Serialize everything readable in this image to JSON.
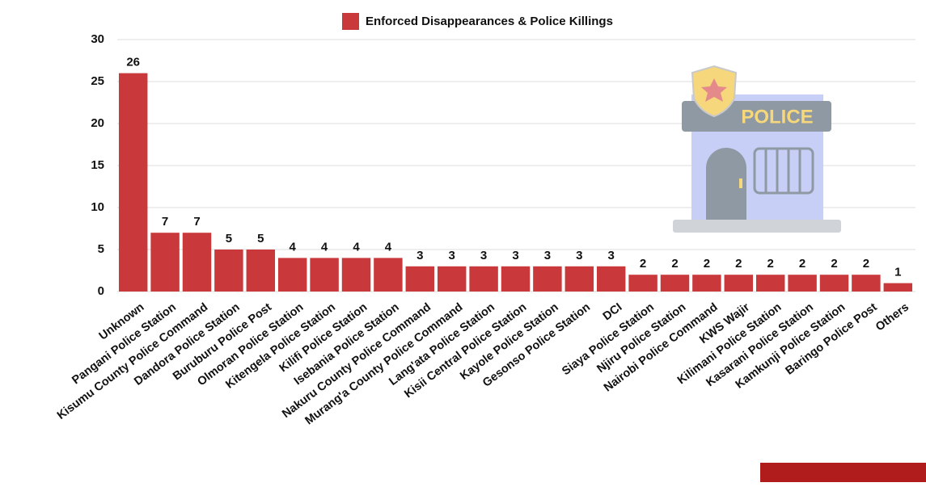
{
  "chart_data": {
    "type": "bar",
    "legend": "Enforced Disappearances & Police Killings",
    "color": "#c9393c",
    "categories": [
      "Unknown",
      "Pangani Police Station",
      "Kisumu County Police Command",
      "Dandora Police Station",
      "Buruburu Police Post",
      "Olmoran Police Station",
      "Kitengela Police Station",
      "Kilifi Police Station",
      "Isebania Police Station",
      "Nakuru County Police Command",
      "Murang'a County Police Command",
      "Lang'ata Police Station",
      "Kisii Central Police Station",
      "Kayole Police Station",
      "Gesonso Police Station",
      "DCI",
      "Siaya Police Station",
      "Njiru Police Station",
      "Nairobi Police Command",
      "KWS Wajir",
      "Kilimani Police Station",
      "Kasarani Police Station",
      "Kamkunji Police Station",
      "Baringo Police Post",
      "Others"
    ],
    "values": [
      26,
      7,
      7,
      5,
      5,
      4,
      4,
      4,
      4,
      3,
      3,
      3,
      3,
      3,
      3,
      3,
      2,
      2,
      2,
      2,
      2,
      2,
      2,
      2,
      1
    ],
    "ylim": [
      0,
      30
    ],
    "yticks": [
      0,
      5,
      10,
      15,
      20,
      25,
      30
    ],
    "grid": true,
    "illustration_label": "POLICE"
  }
}
